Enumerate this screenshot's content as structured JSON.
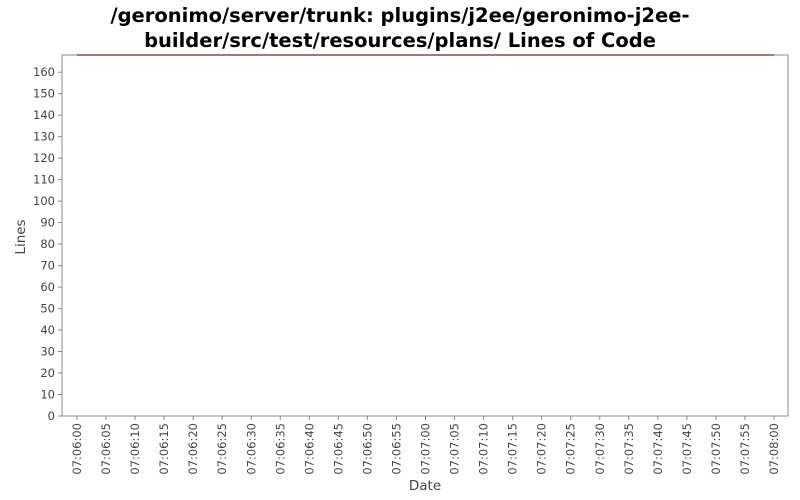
{
  "chart_data": {
    "type": "line",
    "title_line1": "/geronimo/server/trunk: plugins/j2ee/geronimo-j2ee-",
    "title_line2": "builder/src/test/resources/plans/ Lines of Code",
    "xlabel": "Date",
    "ylabel": "Lines",
    "ylim": [
      0,
      168
    ],
    "yticks": [
      0,
      10,
      20,
      30,
      40,
      50,
      60,
      70,
      80,
      90,
      100,
      110,
      120,
      130,
      140,
      150,
      160
    ],
    "xticks": [
      "07:06:00",
      "07:06:05",
      "07:06:10",
      "07:06:15",
      "07:06:20",
      "07:06:25",
      "07:06:30",
      "07:06:35",
      "07:06:40",
      "07:06:45",
      "07:06:50",
      "07:06:55",
      "07:07:00",
      "07:07:05",
      "07:07:10",
      "07:07:15",
      "07:07:20",
      "07:07:25",
      "07:07:30",
      "07:07:35",
      "07:07:40",
      "07:07:45",
      "07:07:50",
      "07:07:55",
      "07:08:00"
    ],
    "series": [
      {
        "color": "#8b1a1a",
        "points": [
          {
            "x": "07:06:00",
            "y": 168
          },
          {
            "x": "07:08:00",
            "y": 168
          }
        ]
      }
    ],
    "grid": false,
    "legend": "none"
  },
  "colors": {
    "series_line": "#8b1a1a",
    "axis": "#888888",
    "tick_text": "#444444"
  }
}
